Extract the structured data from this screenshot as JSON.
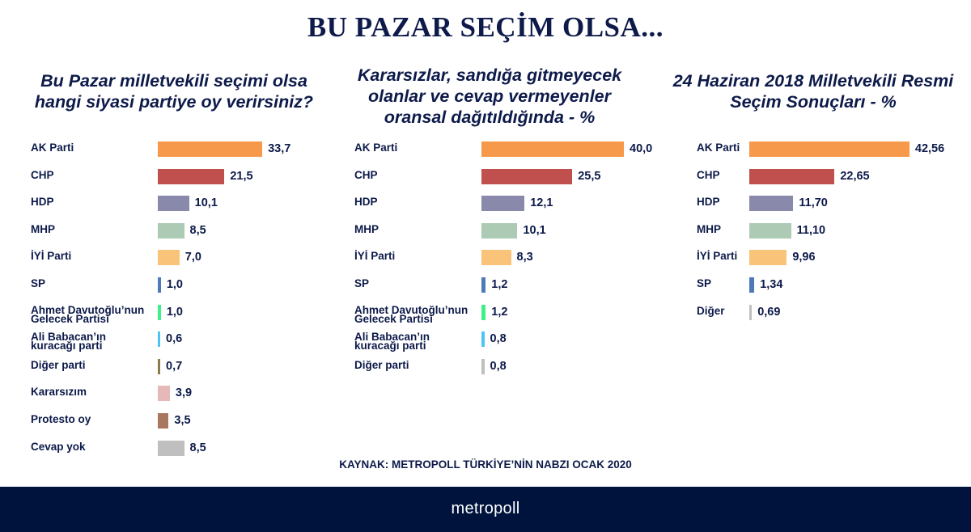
{
  "title": "BU PAZAR SEÇİM OLSA...",
  "source": "KAYNAK: METROPOLL TÜRKİYE’NİN NABZI OCAK 2020",
  "footer": {
    "logo_text": "metropoll"
  },
  "colors": {
    "text": "#0d1a4a",
    "footer_bg": "#00133d",
    "AK Parti": "#f7994a",
    "CHP": "#c0504d",
    "HDP": "#8889ab",
    "MHP": "#adcab5",
    "İYİ Parti": "#f9c479",
    "SP": "#4f7ab8",
    "Gelecek": "#3ef08a",
    "Babacan": "#4fc3f7",
    "Diğer parti (1)": "#8b7d4a",
    "Kararsızım": "#e6b8b8",
    "Protesto oy": "#a8785e",
    "Gray": "#bfbfbf"
  },
  "chart_data": [
    {
      "type": "bar",
      "orientation": "horizontal",
      "title": "Bu Pazar milletvekili seçimi olsa hangi siyasi partiye oy verirsiniz?",
      "categories": [
        "AK Parti",
        "CHP",
        "HDP",
        "MHP",
        "İYİ Parti",
        "SP",
        "Ahmet Davutoğlu’nun\nGelecek Partisi",
        "Ali Babacan’ın\nkuracağı parti",
        "Diğer parti",
        "Kararsızım",
        "Protesto oy",
        "Cevap yok"
      ],
      "values": [
        33.7,
        21.5,
        10.1,
        8.5,
        7.0,
        1.0,
        1.0,
        0.6,
        0.7,
        3.9,
        3.5,
        8.5
      ],
      "value_labels": [
        "33,7",
        "21,5",
        "10,1",
        "8,5",
        "7,0",
        "1,0",
        "1,0",
        "0,6",
        "0,7",
        "3,9",
        "3,5",
        "8,5"
      ],
      "bar_colors": [
        "#f7994a",
        "#c0504d",
        "#8889ab",
        "#adcab5",
        "#f9c479",
        "#4f7ab8",
        "#3ef08a",
        "#4fc3f7",
        "#8b7d4a",
        "#e6b8b8",
        "#a8785e",
        "#bfbfbf"
      ],
      "grid": false
    },
    {
      "type": "bar",
      "orientation": "horizontal",
      "title": "Kararsızlar, sandığa gitmeyecek olanlar ve cevap vermeyenler oransal dağıtıldığında - %",
      "categories": [
        "AK Parti",
        "CHP",
        "HDP",
        "MHP",
        "İYİ Parti",
        "SP",
        "Ahmet Davutoğlu’nun\nGelecek Partisi",
        "Ali Babacan’ın\nkuracağı parti",
        "Diğer parti"
      ],
      "values": [
        40.0,
        25.5,
        12.1,
        10.1,
        8.3,
        1.2,
        1.2,
        0.8,
        0.8
      ],
      "value_labels": [
        "40,0",
        "25,5",
        "12,1",
        "10,1",
        "8,3",
        "1,2",
        "1,2",
        "0,8",
        "0,8"
      ],
      "bar_colors": [
        "#f7994a",
        "#c0504d",
        "#8889ab",
        "#adcab5",
        "#f9c479",
        "#4f7ab8",
        "#3ef08a",
        "#4fc3f7",
        "#bfbfbf"
      ],
      "grid": false
    },
    {
      "type": "bar",
      "orientation": "horizontal",
      "title": "24 Haziran 2018 Milletvekili Resmi Seçim Sonuçları - %",
      "categories": [
        "AK Parti",
        "CHP",
        "HDP",
        "MHP",
        "İYİ Parti",
        "SP",
        "Diğer"
      ],
      "values": [
        42.56,
        22.65,
        11.7,
        11.1,
        9.96,
        1.34,
        0.69
      ],
      "value_labels": [
        "42,56",
        "22,65",
        "11,70",
        "11,10",
        "9,96",
        "1,34",
        "0,69"
      ],
      "bar_colors": [
        "#f7994a",
        "#c0504d",
        "#8889ab",
        "#adcab5",
        "#f9c479",
        "#4f7ab8",
        "#bfbfbf"
      ],
      "grid": false
    }
  ]
}
